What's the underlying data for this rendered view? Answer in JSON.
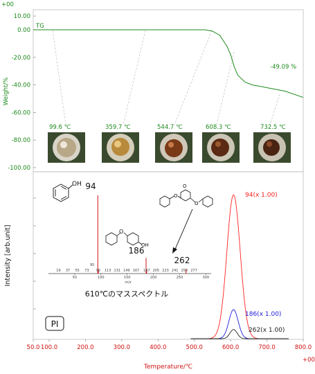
{
  "figure": {
    "corner_top": "+00",
    "corner_bottom": "+00",
    "x_axis_title": "Temperature/℃",
    "x_ticks": [
      "50.0",
      "100.0",
      "200.0",
      "300.0",
      "400.0",
      "500.0",
      "600.0",
      "700.0",
      "800.0"
    ],
    "tg": {
      "y_axis_title": "Weight/%",
      "y_ticks": [
        "10.00",
        "0.00",
        "-20.00",
        "-40.00",
        "-60.00",
        "-80.00",
        "-100.00"
      ],
      "curve_label": "TG",
      "loss_label": "-49.09 %",
      "photo_labels": [
        "99.6 ℃",
        "359.7 ℃",
        "544.7 ℃",
        "608.3 ℃",
        "732.5 ℃"
      ]
    },
    "ms": {
      "y_axis_title": "Intensity [arb.unit]",
      "sample_label": "PI",
      "curve_labels": [
        {
          "text": "94(x 1.00)",
          "color": "#ff2020"
        },
        {
          "text": "186(x 1.00)",
          "color": "#2020dd"
        },
        {
          "text": "262(x 1.00)",
          "color": "#222222"
        }
      ]
    },
    "inset": {
      "caption": "610℃のマススペクトル",
      "fragment_labels": [
        "94",
        "186",
        "262"
      ],
      "axis_label": "m/z",
      "axis_ticks": [
        "50",
        "100",
        "150",
        "200",
        "250",
        "300"
      ],
      "peak_labels": [
        "19",
        "37",
        "55",
        "73",
        "95",
        "113",
        "131",
        "149",
        "167",
        "187",
        "205",
        "223",
        "241",
        "259",
        "277"
      ],
      "peak_small": "95"
    }
  },
  "chart_data": [
    {
      "type": "line",
      "title": "",
      "xlabel": "Temperature/℃",
      "ylabel": "Weight/%",
      "xlim": [
        50,
        800
      ],
      "ylim": [
        -100,
        10
      ],
      "series": [
        {
          "name": "TG",
          "color": "#1c8a1c",
          "x": [
            50,
            100,
            200,
            300,
            400,
            450,
            500,
            530,
            550,
            570,
            590,
            600,
            610,
            620,
            640,
            660,
            700,
            750,
            800
          ],
          "y": [
            0,
            0,
            0,
            0,
            0,
            0,
            0,
            0,
            -1,
            -4,
            -12,
            -18,
            -27,
            -33,
            -38,
            -40,
            -42,
            -44.5,
            -49.09
          ]
        }
      ],
      "annotations": [
        "-49.09 %",
        "99.6 ℃",
        "359.7 ℃",
        "544.7 ℃",
        "608.3 ℃",
        "732.5 ℃"
      ]
    },
    {
      "type": "line",
      "title": "",
      "xlabel": "Temperature/℃",
      "ylabel": "Intensity [arb.unit]",
      "xlim": [
        50,
        800
      ],
      "ylim": [
        0,
        1
      ],
      "grid": false,
      "series": [
        {
          "name": "94(x 1.00)",
          "color": "#ff2020",
          "peak_x": 608,
          "peak_y": 0.94,
          "width": 26
        },
        {
          "name": "186(x 1.00)",
          "color": "#2020dd",
          "peak_x": 608,
          "peak_y": 0.19,
          "width": 18
        },
        {
          "name": "262(x 1.00)",
          "color": "#222222",
          "peak_x": 608,
          "peak_y": 0.06,
          "width": 14
        }
      ]
    },
    {
      "type": "bar",
      "title": "610℃のマススペクトル",
      "xlabel": "m/z",
      "ylabel": "",
      "xlim": [
        0,
        310
      ],
      "ylim": [
        0,
        1
      ],
      "x": [
        94,
        95,
        186,
        187,
        262
      ],
      "values": [
        1.0,
        0.05,
        0.2,
        0.05,
        0.06
      ]
    }
  ]
}
